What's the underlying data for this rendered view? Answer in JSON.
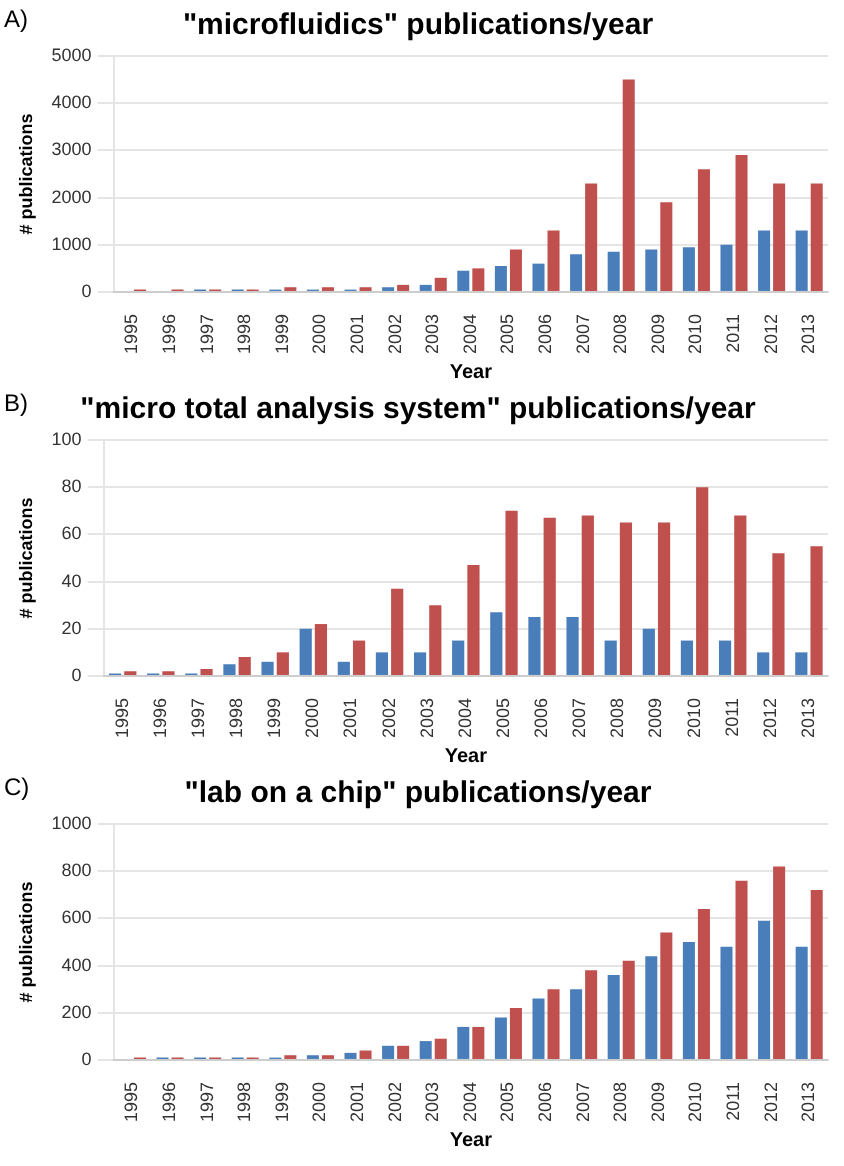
{
  "chart_data": [
    {
      "type": "bar",
      "title": "\"microfluidics\" publications/year",
      "xlabel": "Year",
      "ylabel": "# publications",
      "annotations": [
        "A)"
      ],
      "categories": [
        "1995",
        "1996",
        "1997",
        "1998",
        "1999",
        "2000",
        "2001",
        "2002",
        "2003",
        "2004",
        "2005",
        "2006",
        "2007",
        "2008",
        "2009",
        "2010",
        "2011",
        "2012",
        "2013"
      ],
      "series": [
        {
          "color": "#4a7ebb",
          "values": [
            0,
            0,
            50,
            50,
            50,
            50,
            50,
            100,
            150,
            450,
            550,
            600,
            800,
            850,
            900,
            950,
            1000,
            1300,
            1300
          ]
        },
        {
          "color": "#c0504d",
          "values": [
            50,
            50,
            50,
            50,
            100,
            100,
            100,
            150,
            300,
            500,
            900,
            1300,
            2300,
            4500,
            1900,
            2600,
            2900,
            2300,
            2300
          ]
        }
      ],
      "ylim": [
        0,
        5000
      ],
      "yticks": [
        0,
        1000,
        2000,
        3000,
        4000,
        5000
      ],
      "grid": "y",
      "legend": false
    },
    {
      "type": "bar",
      "title": "\"micro total analysis system\" publications/year",
      "xlabel": "Year",
      "ylabel": "# publications",
      "annotations": [
        "B)"
      ],
      "categories": [
        "1995",
        "1996",
        "1997",
        "1998",
        "1999",
        "2000",
        "2001",
        "2002",
        "2003",
        "2004",
        "2005",
        "2006",
        "2007",
        "2008",
        "2009",
        "2010",
        "2011",
        "2012",
        "2013"
      ],
      "series": [
        {
          "color": "#4a7ebb",
          "values": [
            1,
            1,
            1,
            5,
            6,
            20,
            6,
            10,
            10,
            15,
            27,
            25,
            25,
            15,
            20,
            15,
            15,
            10,
            10
          ]
        },
        {
          "color": "#c0504d",
          "values": [
            2,
            2,
            3,
            8,
            10,
            22,
            15,
            37,
            30,
            47,
            70,
            67,
            68,
            65,
            65,
            80,
            68,
            52,
            55
          ]
        }
      ],
      "ylim": [
        0,
        100
      ],
      "yticks": [
        0,
        20,
        40,
        60,
        80,
        100
      ],
      "grid": "y",
      "legend": false
    },
    {
      "type": "bar",
      "title": "\"lab on a chip\" publications/year",
      "xlabel": "Year",
      "ylabel": "# publications",
      "annotations": [
        "C)"
      ],
      "categories": [
        "1995",
        "1996",
        "1997",
        "1998",
        "1999",
        "2000",
        "2001",
        "2002",
        "2003",
        "2004",
        "2005",
        "2006",
        "2007",
        "2008",
        "2009",
        "2010",
        "2011",
        "2012",
        "2013"
      ],
      "series": [
        {
          "color": "#4a7ebb",
          "values": [
            0,
            10,
            10,
            10,
            10,
            20,
            30,
            60,
            80,
            140,
            180,
            260,
            300,
            360,
            440,
            500,
            480,
            590,
            480
          ]
        },
        {
          "color": "#c0504d",
          "values": [
            10,
            10,
            10,
            10,
            20,
            20,
            40,
            60,
            90,
            140,
            220,
            300,
            380,
            420,
            540,
            640,
            760,
            820,
            720
          ]
        }
      ],
      "ylim": [
        0,
        1000
      ],
      "yticks": [
        0,
        200,
        400,
        600,
        800,
        1000
      ],
      "grid": "y",
      "legend": false
    }
  ]
}
